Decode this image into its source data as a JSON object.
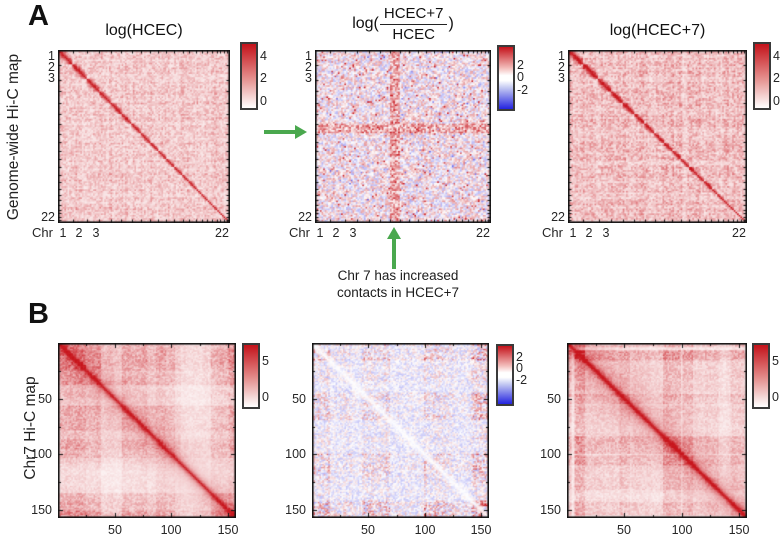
{
  "colors": {
    "heat_red": "#c8161d",
    "diverging_blue": "#2222e4",
    "arrow_green": "#4aa84e",
    "axis_black": "#111111"
  },
  "panel_a": {
    "label": "A",
    "row_label": "Genome-wide Hi-C map",
    "x_axis_prefix": "Chr",
    "x_tick_labels": [
      "1",
      "2",
      "3",
      "22"
    ],
    "y_tick_labels": [
      "1",
      "2",
      "3",
      "22"
    ],
    "plots": [
      {
        "id": "a1",
        "title": "log(HCEC)",
        "colorbar_ticks": [
          "4",
          "2",
          "0"
        ]
      },
      {
        "id": "a2",
        "title_prefix": "log(",
        "title_numerator": "HCEC+7",
        "title_denominator": "HCEC",
        "title_suffix": ")",
        "colorbar_ticks": [
          "2",
          "0",
          "-2"
        ]
      },
      {
        "id": "a3",
        "title": "log(HCEC+7)",
        "colorbar_ticks": [
          "4",
          "2",
          "0"
        ]
      }
    ],
    "annotation_line1": "Chr 7 has increased",
    "annotation_line2": "contacts in HCEC+7"
  },
  "panel_b": {
    "label": "B",
    "row_label": "Chr7 Hi-C map",
    "x_tick_labels": [
      "50",
      "100",
      "150"
    ],
    "y_tick_labels": [
      "50",
      "100",
      "150"
    ],
    "plots": [
      {
        "id": "b1",
        "colorbar_ticks": [
          "5",
          "0"
        ]
      },
      {
        "id": "b2",
        "colorbar_ticks": [
          "2",
          "0",
          "-2"
        ]
      },
      {
        "id": "b3",
        "colorbar_ticks": [
          "5",
          "0"
        ]
      }
    ]
  },
  "chart_data": [
    {
      "type": "heatmap",
      "panel": "A-left",
      "title": "log(HCEC)",
      "description": "Genome-wide Hi-C contact map of HCEC cells; dark red diamond blocks along the main diagonal are intra-chromosomal contacts for chromosomes 1-22 over a light pink inter-chromosomal background",
      "x_axis": "Chr 1-22",
      "y_axis": "Chr 1-22",
      "x_ticks": [
        "1",
        "2",
        "3",
        "22"
      ],
      "y_ticks": [
        "1",
        "2",
        "3",
        "22"
      ],
      "colormap": "white-to-red",
      "colorbar_ticks": [
        4,
        2,
        0
      ],
      "colorbar_range": [
        0,
        5
      ]
    },
    {
      "type": "heatmap",
      "panel": "A-middle",
      "title": "log(HCEC+7/HCEC)",
      "description": "Genome-wide log-ratio map HCEC+7 vs HCEC; mostly near-zero (white) speckle with a red horizontal and vertical stripe at chromosome 7 indicating increased contacts",
      "x_axis": "Chr 1-22",
      "y_axis": "Chr 1-22",
      "x_ticks": [
        "1",
        "2",
        "3",
        "22"
      ],
      "y_ticks": [
        "1",
        "2",
        "3",
        "22"
      ],
      "colormap": "blue-white-red",
      "colorbar_ticks": [
        2,
        0,
        -2
      ],
      "colorbar_range": [
        -3,
        3
      ],
      "annotation": "Chr 7 has increased contacts in HCEC+7 (green arrows mark the chr7 row and column)"
    },
    {
      "type": "heatmap",
      "panel": "A-right",
      "title": "log(HCEC+7)",
      "description": "Genome-wide Hi-C contact map of HCEC+7 cells; same diagonal chromosome-block pattern as HCEC with overall slightly stronger signal",
      "x_axis": "Chr 1-22",
      "y_axis": "Chr 1-22",
      "x_ticks": [
        "1",
        "2",
        "3",
        "22"
      ],
      "y_ticks": [
        "1",
        "2",
        "3",
        "22"
      ],
      "colormap": "white-to-red",
      "colorbar_ticks": [
        4,
        2,
        0
      ],
      "colorbar_range": [
        0,
        5
      ]
    },
    {
      "type": "heatmap",
      "panel": "B-left",
      "title": "",
      "description": "Chromosome 7 intra-chromosomal Hi-C map of HCEC (bins 1-157); strong dark red main diagonal with blocky compartment stripes",
      "x_axis": "chr7 bin",
      "y_axis": "chr7 bin",
      "x_ticks": [
        50,
        100,
        150
      ],
      "y_ticks": [
        50,
        100,
        150
      ],
      "colormap": "white-to-red",
      "colorbar_ticks": [
        5,
        0
      ],
      "colorbar_range": [
        0,
        6
      ]
    },
    {
      "type": "heatmap",
      "panel": "B-middle",
      "title": "",
      "description": "Chromosome 7 log-ratio map HCEC+7 vs HCEC; patchy red enrichment blocks with faint white diagonal",
      "x_axis": "chr7 bin",
      "y_axis": "chr7 bin",
      "x_ticks": [
        50,
        100,
        150
      ],
      "y_ticks": [
        50,
        100,
        150
      ],
      "colormap": "blue-white-red",
      "colorbar_ticks": [
        2,
        0,
        -2
      ],
      "colorbar_range": [
        -3,
        3
      ]
    },
    {
      "type": "heatmap",
      "panel": "B-right",
      "title": "",
      "description": "Chromosome 7 intra-chromosomal Hi-C map of HCEC+7 (bins 1-157); strong dark red main diagonal, overall redder than HCEC",
      "x_axis": "chr7 bin",
      "y_axis": "chr7 bin",
      "x_ticks": [
        50,
        100,
        150
      ],
      "y_ticks": [
        50,
        100,
        150
      ],
      "colormap": "white-to-red",
      "colorbar_ticks": [
        5,
        0
      ],
      "colorbar_range": [
        0,
        6
      ]
    }
  ]
}
